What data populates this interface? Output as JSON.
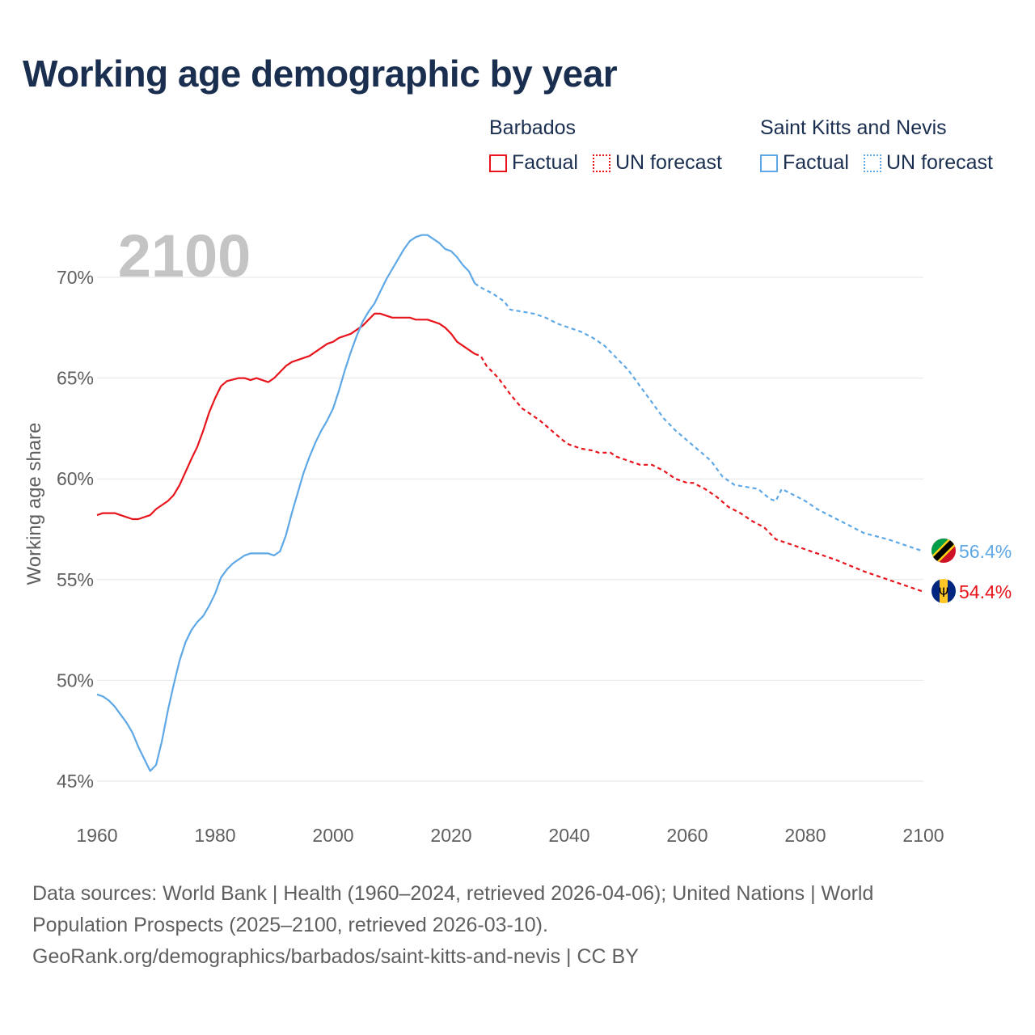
{
  "title": "Working age demographic by year",
  "legend": {
    "groups": [
      {
        "name": "Barbados",
        "color": "#e8141c",
        "factual_label": "Factual",
        "forecast_label": "UN forecast"
      },
      {
        "name": "Saint Kitts and Nevis",
        "color": "#5fa8e6",
        "factual_label": "Factual",
        "forecast_label": "UN forecast"
      }
    ]
  },
  "year_watermark": "2100",
  "footer": {
    "line1": "Data sources: World Bank | Health (1960–2024, retrieved 2026-04-06); United Nations | World",
    "line2": "Population Prospects (2025–2100, retrieved 2026-03-10).",
    "line3": "GeoRank.org/demographics/barbados/saint-kitts-and-nevis | CC BY"
  },
  "chart_data": {
    "type": "line",
    "title": "Working age demographic by year",
    "ylabel": "Working age share",
    "xlabel": "",
    "xlim": [
      1960,
      2100
    ],
    "ylim": [
      44,
      73
    ],
    "x_ticks": [
      1960,
      1980,
      2000,
      2020,
      2040,
      2060,
      2080,
      2100
    ],
    "x_tick_labels": [
      "1960",
      "1980",
      "2000",
      "2020",
      "2040",
      "2060",
      "2080",
      "2100"
    ],
    "y_ticks": [
      45,
      50,
      55,
      60,
      65,
      70
    ],
    "y_tick_labels": [
      "45%",
      "50%",
      "55%",
      "60%",
      "65%",
      "70%"
    ],
    "grid": true,
    "series": [
      {
        "name": "Barbados",
        "color": "#e8141c",
        "factual_range": "1960–2024",
        "forecast_range": "2025–2100",
        "end_label": "54.4%",
        "flag": "barbados-flag",
        "points": [
          [
            1960,
            58.2
          ],
          [
            1961,
            58.3
          ],
          [
            1963,
            58.3
          ],
          [
            1964,
            58.2
          ],
          [
            1966,
            58.0
          ],
          [
            1967,
            58.0
          ],
          [
            1969,
            58.2
          ],
          [
            1970,
            58.5
          ],
          [
            1972,
            58.9
          ],
          [
            1973,
            59.2
          ],
          [
            1974,
            59.7
          ],
          [
            1976,
            61.0
          ],
          [
            1977,
            61.6
          ],
          [
            1978,
            62.4
          ],
          [
            1979,
            63.3
          ],
          [
            1980,
            64.0
          ],
          [
            1981,
            64.6
          ],
          [
            1982,
            64.85
          ],
          [
            1984,
            65.0
          ],
          [
            1985,
            65.0
          ],
          [
            1986,
            64.9
          ],
          [
            1987,
            65.0
          ],
          [
            1988,
            64.9
          ],
          [
            1989,
            64.8
          ],
          [
            1990,
            65.0
          ],
          [
            1992,
            65.6
          ],
          [
            1993,
            65.8
          ],
          [
            1996,
            66.1
          ],
          [
            1998,
            66.5
          ],
          [
            1999,
            66.7
          ],
          [
            2000,
            66.8
          ],
          [
            2001,
            67.0
          ],
          [
            2003,
            67.2
          ],
          [
            2005,
            67.6
          ],
          [
            2007,
            68.2
          ],
          [
            2008,
            68.2
          ],
          [
            2010,
            68.0
          ],
          [
            2013,
            68.0
          ],
          [
            2014,
            67.9
          ],
          [
            2016,
            67.9
          ],
          [
            2018,
            67.7
          ],
          [
            2019,
            67.5
          ],
          [
            2020,
            67.2
          ],
          [
            2021,
            66.8
          ],
          [
            2022,
            66.6
          ],
          [
            2024,
            66.2
          ],
          [
            2025,
            66.1
          ],
          [
            2026,
            65.6
          ],
          [
            2028,
            65.0
          ],
          [
            2030,
            64.2
          ],
          [
            2032,
            63.5
          ],
          [
            2034,
            63.1
          ],
          [
            2035,
            62.9
          ],
          [
            2037,
            62.4
          ],
          [
            2039,
            61.9
          ],
          [
            2040,
            61.7
          ],
          [
            2042,
            61.5
          ],
          [
            2044,
            61.4
          ],
          [
            2045,
            61.3
          ],
          [
            2047,
            61.3
          ],
          [
            2048,
            61.1
          ],
          [
            2050,
            60.9
          ],
          [
            2052,
            60.7
          ],
          [
            2054,
            60.7
          ],
          [
            2056,
            60.4
          ],
          [
            2058,
            60.0
          ],
          [
            2060,
            59.8
          ],
          [
            2061,
            59.8
          ],
          [
            2063,
            59.5
          ],
          [
            2065,
            59.1
          ],
          [
            2067,
            58.6
          ],
          [
            2069,
            58.3
          ],
          [
            2071,
            57.9
          ],
          [
            2073,
            57.6
          ],
          [
            2075,
            57.0
          ],
          [
            2077,
            56.8
          ],
          [
            2080,
            56.5
          ],
          [
            2085,
            56.0
          ],
          [
            2090,
            55.4
          ],
          [
            2095,
            54.9
          ],
          [
            2099,
            54.5
          ],
          [
            2100,
            54.4
          ]
        ]
      },
      {
        "name": "Saint Kitts and Nevis",
        "color": "#5fa8e6",
        "factual_range": "1960–2024",
        "forecast_range": "2025–2100",
        "end_label": "56.4%",
        "flag": "saint-kitts-and-nevis-flag",
        "points": [
          [
            1960,
            49.3
          ],
          [
            1961,
            49.2
          ],
          [
            1962,
            49.0
          ],
          [
            1963,
            48.7
          ],
          [
            1964,
            48.3
          ],
          [
            1965,
            47.9
          ],
          [
            1966,
            47.4
          ],
          [
            1967,
            46.7
          ],
          [
            1968,
            46.1
          ],
          [
            1969,
            45.5
          ],
          [
            1970,
            45.8
          ],
          [
            1971,
            47.0
          ],
          [
            1972,
            48.5
          ],
          [
            1973,
            49.8
          ],
          [
            1974,
            51.0
          ],
          [
            1975,
            51.9
          ],
          [
            1976,
            52.5
          ],
          [
            1977,
            52.9
          ],
          [
            1978,
            53.2
          ],
          [
            1979,
            53.7
          ],
          [
            1980,
            54.3
          ],
          [
            1981,
            55.1
          ],
          [
            1982,
            55.5
          ],
          [
            1983,
            55.8
          ],
          [
            1984,
            56.0
          ],
          [
            1985,
            56.2
          ],
          [
            1986,
            56.3
          ],
          [
            1988,
            56.3
          ],
          [
            1989,
            56.3
          ],
          [
            1990,
            56.2
          ],
          [
            1991,
            56.4
          ],
          [
            1992,
            57.2
          ],
          [
            1993,
            58.3
          ],
          [
            1994,
            59.3
          ],
          [
            1995,
            60.3
          ],
          [
            1996,
            61.1
          ],
          [
            1997,
            61.8
          ],
          [
            1998,
            62.4
          ],
          [
            1999,
            62.9
          ],
          [
            2000,
            63.5
          ],
          [
            2001,
            64.4
          ],
          [
            2002,
            65.4
          ],
          [
            2003,
            66.3
          ],
          [
            2004,
            67.1
          ],
          [
            2005,
            67.8
          ],
          [
            2006,
            68.3
          ],
          [
            2007,
            68.7
          ],
          [
            2008,
            69.3
          ],
          [
            2009,
            69.9
          ],
          [
            2010,
            70.4
          ],
          [
            2011,
            70.9
          ],
          [
            2012,
            71.4
          ],
          [
            2013,
            71.8
          ],
          [
            2014,
            72.0
          ],
          [
            2015,
            72.1
          ],
          [
            2016,
            72.1
          ],
          [
            2017,
            71.9
          ],
          [
            2018,
            71.7
          ],
          [
            2019,
            71.4
          ],
          [
            2020,
            71.3
          ],
          [
            2021,
            71.0
          ],
          [
            2022,
            70.6
          ],
          [
            2023,
            70.3
          ],
          [
            2024,
            69.7
          ],
          [
            2025,
            69.5
          ],
          [
            2027,
            69.2
          ],
          [
            2029,
            68.8
          ],
          [
            2030,
            68.4
          ],
          [
            2032,
            68.3
          ],
          [
            2034,
            68.2
          ],
          [
            2036,
            68.0
          ],
          [
            2038,
            67.7
          ],
          [
            2040,
            67.5
          ],
          [
            2042,
            67.3
          ],
          [
            2044,
            67.0
          ],
          [
            2046,
            66.6
          ],
          [
            2048,
            66.0
          ],
          [
            2050,
            65.4
          ],
          [
            2052,
            64.6
          ],
          [
            2054,
            63.8
          ],
          [
            2056,
            63.0
          ],
          [
            2058,
            62.4
          ],
          [
            2060,
            61.9
          ],
          [
            2062,
            61.4
          ],
          [
            2064,
            60.9
          ],
          [
            2066,
            60.1
          ],
          [
            2068,
            59.7
          ],
          [
            2070,
            59.6
          ],
          [
            2072,
            59.5
          ],
          [
            2074,
            59.0
          ],
          [
            2075,
            58.9
          ],
          [
            2076,
            59.5
          ],
          [
            2078,
            59.2
          ],
          [
            2080,
            58.9
          ],
          [
            2082,
            58.5
          ],
          [
            2084,
            58.2
          ],
          [
            2086,
            57.9
          ],
          [
            2088,
            57.6
          ],
          [
            2090,
            57.3
          ],
          [
            2094,
            57.0
          ],
          [
            2098,
            56.6
          ],
          [
            2100,
            56.4
          ]
        ]
      }
    ]
  }
}
